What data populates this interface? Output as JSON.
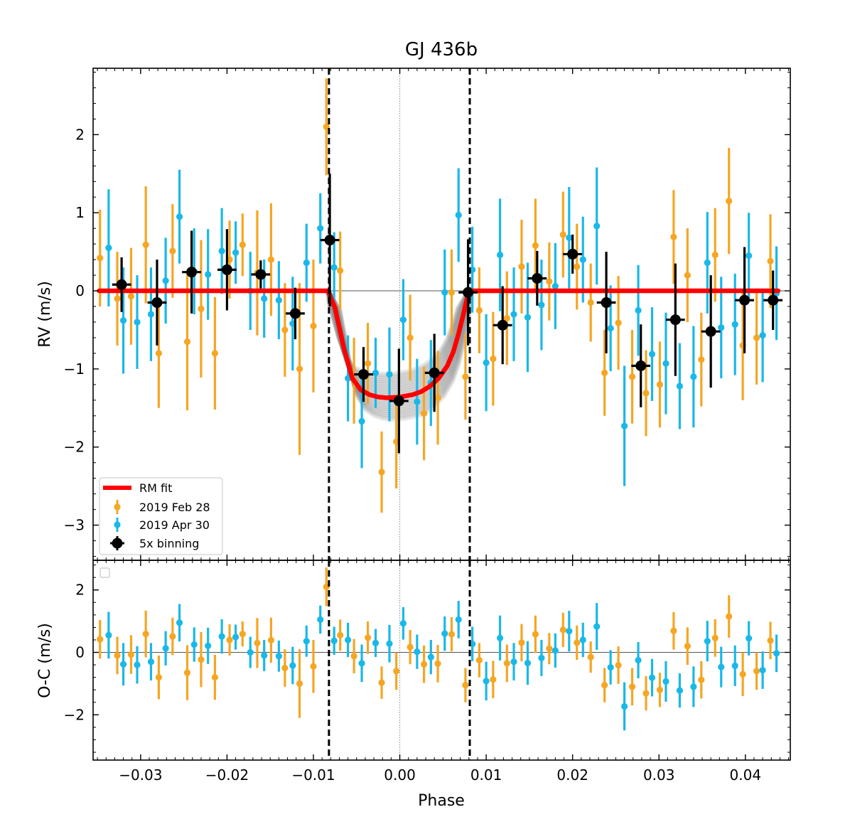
{
  "colors": {
    "feb": "#f5a623",
    "apr": "#1ab8e8",
    "bin": "#000000",
    "fit": "#ff0000",
    "samples": "#7f7f7f"
  },
  "chart_data": {
    "type": "scatter",
    "title": "GJ 436b",
    "xlabel": "Phase",
    "ylabel_top": "RV (m/s)",
    "ylabel_bottom": "O-C (m/s)",
    "xlim": [
      -0.0355,
      0.0452
    ],
    "ylim_top": [
      -3.45,
      2.85
    ],
    "ylim_bottom": [
      -3.45,
      2.95
    ],
    "x_ticks": [
      -0.03,
      -0.02,
      -0.01,
      0.0,
      0.01,
      0.02,
      0.03,
      0.04
    ],
    "x_tick_labels": [
      "−0.03",
      "−0.02",
      "−0.01",
      "0.00",
      "0.01",
      "0.02",
      "0.03",
      "0.04"
    ],
    "y_ticks_top": [
      -3,
      -2,
      -1,
      0,
      1,
      2
    ],
    "y_tick_labels_top": [
      "−3",
      "−2",
      "−1",
      "0",
      "1",
      "2"
    ],
    "y_ticks_bottom": [
      -2,
      0,
      2
    ],
    "y_tick_labels_bottom": [
      "−2",
      "0",
      "2"
    ],
    "transit_ingress": -0.0082,
    "transit_egress": 0.0081,
    "legend": {
      "position": "lower-left",
      "entries": [
        "RM fit",
        "2019 Feb 28",
        "2019 Apr 30",
        "5x binning"
      ]
    },
    "rm_fit": {
      "name": "RM fit",
      "x": [
        -0.0348,
        -0.0083,
        -0.0075,
        -0.0065,
        -0.0055,
        -0.0045,
        -0.0035,
        -0.0025,
        -0.0015,
        0.0,
        0.0015,
        0.0025,
        0.0035,
        0.0045,
        0.0055,
        0.0062,
        0.0068,
        0.0074,
        0.008,
        0.0438
      ],
      "y": [
        0.0,
        0.0,
        -0.22,
        -0.72,
        -1.12,
        -1.27,
        -1.33,
        -1.36,
        -1.37,
        -1.36,
        -1.33,
        -1.29,
        -1.22,
        -1.12,
        -0.96,
        -0.78,
        -0.55,
        -0.28,
        0.0,
        0.0
      ]
    },
    "series": [
      {
        "name": "2019 Feb 28",
        "x": [
          -0.0347,
          -0.0327,
          -0.0311,
          -0.0294,
          -0.0279,
          -0.0263,
          -0.0246,
          -0.023,
          -0.0214,
          -0.0197,
          -0.0182,
          -0.0165,
          -0.0149,
          -0.0133,
          -0.0116,
          -0.01,
          -0.0085,
          -0.0069,
          -0.0053,
          -0.0037,
          -0.0021,
          -0.0004,
          0.0012,
          0.0028,
          0.0044,
          0.006,
          0.0076,
          0.0092,
          0.0108,
          0.0124,
          0.0141,
          0.0157,
          0.0173,
          0.0189,
          0.0205,
          0.0221,
          0.0237,
          0.0253,
          0.0269,
          0.0285,
          0.0301,
          0.0317,
          0.0333,
          0.0349,
          0.0365,
          0.0381,
          0.0397,
          0.0413,
          0.0429
        ],
        "y": [
          0.42,
          -0.1,
          -0.07,
          0.59,
          -0.8,
          0.51,
          -0.65,
          -0.23,
          -0.8,
          0.4,
          0.59,
          0.23,
          0.4,
          -0.5,
          -1.0,
          -0.45,
          2.1,
          0.26,
          -1.15,
          -0.93,
          -2.32,
          -1.93,
          -0.6,
          -1.57,
          -1.37,
          -0.02,
          -1.1,
          -0.25,
          -0.87,
          -0.35,
          0.31,
          0.58,
          0.12,
          0.72,
          0.31,
          -0.15,
          -1.05,
          -0.41,
          -1.1,
          -1.31,
          -1.2,
          0.69,
          0.2,
          -0.88,
          0.46,
          1.15,
          -0.7,
          -0.6,
          0.38
        ],
        "err": [
          0.62,
          0.6,
          0.62,
          0.75,
          0.7,
          0.6,
          0.88,
          0.88,
          0.72,
          0.5,
          0.4,
          0.8,
          0.72,
          0.6,
          1.1,
          0.85,
          0.62,
          0.5,
          0.55,
          0.52,
          0.52,
          0.6,
          0.55,
          0.6,
          0.6,
          0.55,
          0.55,
          0.55,
          0.6,
          0.6,
          0.6,
          0.6,
          0.5,
          0.55,
          0.55,
          0.5,
          0.55,
          0.6,
          0.6,
          0.55,
          0.55,
          0.6,
          0.6,
          0.6,
          0.6,
          0.68,
          0.7,
          0.6,
          0.6
        ]
      },
      {
        "name": "2019 Apr 30",
        "x": [
          -0.0337,
          -0.032,
          -0.0304,
          -0.0288,
          -0.0271,
          -0.0255,
          -0.0238,
          -0.0222,
          -0.0206,
          -0.019,
          -0.0173,
          -0.0157,
          -0.014,
          -0.0124,
          -0.0108,
          -0.0092,
          -0.0076,
          -0.006,
          -0.0044,
          -0.0028,
          -0.0012,
          0.0004,
          0.002,
          0.0036,
          0.0052,
          0.0068,
          0.0084,
          0.01,
          0.0116,
          0.0132,
          0.0148,
          0.0164,
          0.018,
          0.0196,
          0.0212,
          0.0228,
          0.0244,
          0.026,
          0.0276,
          0.0292,
          0.0308,
          0.0324,
          0.034,
          0.0356,
          0.0372,
          0.0388,
          0.0404,
          0.042,
          0.0436
        ],
        "y": [
          0.55,
          -0.38,
          -0.4,
          -0.3,
          0.13,
          0.95,
          0.25,
          0.21,
          0.51,
          0.49,
          0.0,
          -0.1,
          -0.12,
          -0.42,
          0.36,
          0.8,
          0.3,
          -1.12,
          -1.67,
          -1.05,
          -1.07,
          -0.37,
          -1.42,
          -1.18,
          -0.02,
          0.97,
          0.27,
          -0.92,
          0.46,
          -0.3,
          -0.34,
          -0.18,
          0.06,
          0.68,
          0.4,
          0.83,
          -0.48,
          -1.73,
          -0.25,
          -0.81,
          -0.93,
          -1.22,
          -1.1,
          0.36,
          -0.47,
          -0.43,
          0.45,
          -0.57,
          -0.03
        ],
        "err": [
          0.75,
          0.68,
          0.6,
          0.6,
          0.55,
          0.6,
          0.55,
          0.58,
          0.55,
          0.4,
          0.5,
          0.5,
          0.5,
          0.6,
          0.5,
          0.45,
          0.45,
          0.55,
          0.6,
          0.45,
          0.6,
          0.52,
          0.55,
          0.55,
          0.55,
          0.6,
          0.55,
          0.62,
          0.72,
          0.6,
          0.7,
          0.58,
          0.55,
          0.65,
          0.55,
          0.75,
          0.55,
          0.77,
          0.58,
          0.6,
          0.65,
          0.55,
          0.65,
          0.65,
          0.65,
          0.65,
          0.55,
          0.6,
          0.6
        ]
      },
      {
        "name": "5x binning",
        "x": [
          -0.0322,
          -0.0281,
          -0.0241,
          -0.02,
          -0.0161,
          -0.0121,
          -0.0081,
          -0.0042,
          -0.0001,
          0.004,
          0.0079,
          0.0119,
          0.0159,
          0.02,
          0.0239,
          0.0279,
          0.0319,
          0.036,
          0.0399,
          0.0432
        ],
        "y": [
          0.08,
          -0.15,
          0.24,
          0.27,
          0.21,
          -0.29,
          0.65,
          -1.07,
          -1.41,
          -1.05,
          -0.02,
          -0.44,
          0.16,
          0.47,
          -0.15,
          -0.96,
          -0.37,
          -0.52,
          -0.12,
          -0.12
        ],
        "yerr": [
          0.35,
          0.55,
          0.53,
          0.52,
          0.18,
          0.33,
          0.85,
          0.35,
          0.67,
          0.5,
          0.68,
          0.5,
          0.35,
          0.25,
          0.65,
          0.53,
          0.72,
          0.72,
          0.68,
          0.38
        ],
        "xerr": 0.0011
      }
    ],
    "residuals": [
      {
        "name": "2019 Feb 28",
        "x": [
          -0.0347,
          -0.0327,
          -0.0311,
          -0.0294,
          -0.0279,
          -0.0263,
          -0.0246,
          -0.023,
          -0.0214,
          -0.0197,
          -0.0182,
          -0.0165,
          -0.0149,
          -0.0133,
          -0.0116,
          -0.01,
          -0.0085,
          -0.0069,
          -0.0053,
          -0.0037,
          -0.0021,
          -0.0004,
          0.0012,
          0.0028,
          0.0044,
          0.006,
          0.0076,
          0.0092,
          0.0108,
          0.0124,
          0.0141,
          0.0157,
          0.0173,
          0.0189,
          0.0205,
          0.0221,
          0.0237,
          0.0253,
          0.0269,
          0.0285,
          0.0301,
          0.0317,
          0.0333,
          0.0349,
          0.0365,
          0.0381,
          0.0397,
          0.0413,
          0.0429
        ],
        "y": [
          0.42,
          -0.1,
          -0.07,
          0.59,
          -0.8,
          0.51,
          -0.65,
          -0.23,
          -0.8,
          0.4,
          0.59,
          0.3,
          0.39,
          -0.5,
          -1.0,
          -0.45,
          2.1,
          0.55,
          -0.12,
          0.47,
          -0.97,
          -0.6,
          0.17,
          -0.38,
          -0.36,
          0.58,
          -1.05,
          -0.25,
          -0.87,
          -0.35,
          0.31,
          0.58,
          0.12,
          0.72,
          0.31,
          -0.15,
          -1.05,
          -0.41,
          -1.1,
          -1.31,
          -1.2,
          0.69,
          0.2,
          -0.88,
          0.46,
          1.15,
          -0.7,
          -0.6,
          0.38
        ],
        "err": [
          0.62,
          0.6,
          0.62,
          0.75,
          0.7,
          0.6,
          0.88,
          0.88,
          0.72,
          0.5,
          0.4,
          0.8,
          0.72,
          0.6,
          1.1,
          0.85,
          0.62,
          0.5,
          0.55,
          0.52,
          0.52,
          0.6,
          0.55,
          0.6,
          0.6,
          0.55,
          0.55,
          0.55,
          0.6,
          0.6,
          0.6,
          0.6,
          0.5,
          0.55,
          0.55,
          0.5,
          0.55,
          0.6,
          0.6,
          0.55,
          0.55,
          0.6,
          0.6,
          0.6,
          0.6,
          0.68,
          0.7,
          0.6,
          0.6
        ]
      },
      {
        "name": "2019 Apr 30",
        "x": [
          -0.0337,
          -0.032,
          -0.0304,
          -0.0288,
          -0.0271,
          -0.0255,
          -0.0238,
          -0.0222,
          -0.0206,
          -0.019,
          -0.0173,
          -0.0157,
          -0.014,
          -0.0124,
          -0.0108,
          -0.0092,
          -0.0076,
          -0.006,
          -0.0044,
          -0.0028,
          -0.0012,
          0.0004,
          0.002,
          0.0036,
          0.0052,
          0.0068,
          0.0084,
          0.01,
          0.0116,
          0.0132,
          0.0148,
          0.0164,
          0.018,
          0.0196,
          0.0212,
          0.0228,
          0.0244,
          0.026,
          0.0276,
          0.0292,
          0.0308,
          0.0324,
          0.034,
          0.0356,
          0.0372,
          0.0388,
          0.0404,
          0.042,
          0.0436
        ],
        "y": [
          0.55,
          -0.38,
          -0.4,
          -0.3,
          0.13,
          0.95,
          0.25,
          0.21,
          0.51,
          0.49,
          0.0,
          -0.1,
          -0.12,
          -0.42,
          0.36,
          1.05,
          0.37,
          0.4,
          -0.35,
          0.3,
          0.28,
          0.93,
          0.02,
          -0.15,
          0.6,
          1.05,
          0.27,
          -0.92,
          0.46,
          -0.3,
          -0.34,
          -0.18,
          0.06,
          0.68,
          0.4,
          0.83,
          -0.48,
          -1.73,
          -0.25,
          -0.81,
          -0.93,
          -1.22,
          -1.1,
          0.36,
          -0.47,
          -0.43,
          0.45,
          -0.57,
          -0.03
        ],
        "err": [
          0.75,
          0.68,
          0.6,
          0.6,
          0.55,
          0.6,
          0.55,
          0.58,
          0.55,
          0.4,
          0.5,
          0.5,
          0.5,
          0.6,
          0.5,
          0.45,
          0.45,
          0.55,
          0.6,
          0.45,
          0.6,
          0.52,
          0.55,
          0.55,
          0.55,
          0.6,
          0.55,
          0.62,
          0.72,
          0.6,
          0.7,
          0.58,
          0.55,
          0.65,
          0.55,
          0.75,
          0.55,
          0.77,
          0.58,
          0.6,
          0.65,
          0.55,
          0.65,
          0.65,
          0.65,
          0.65,
          0.55,
          0.6,
          0.6
        ]
      }
    ]
  }
}
